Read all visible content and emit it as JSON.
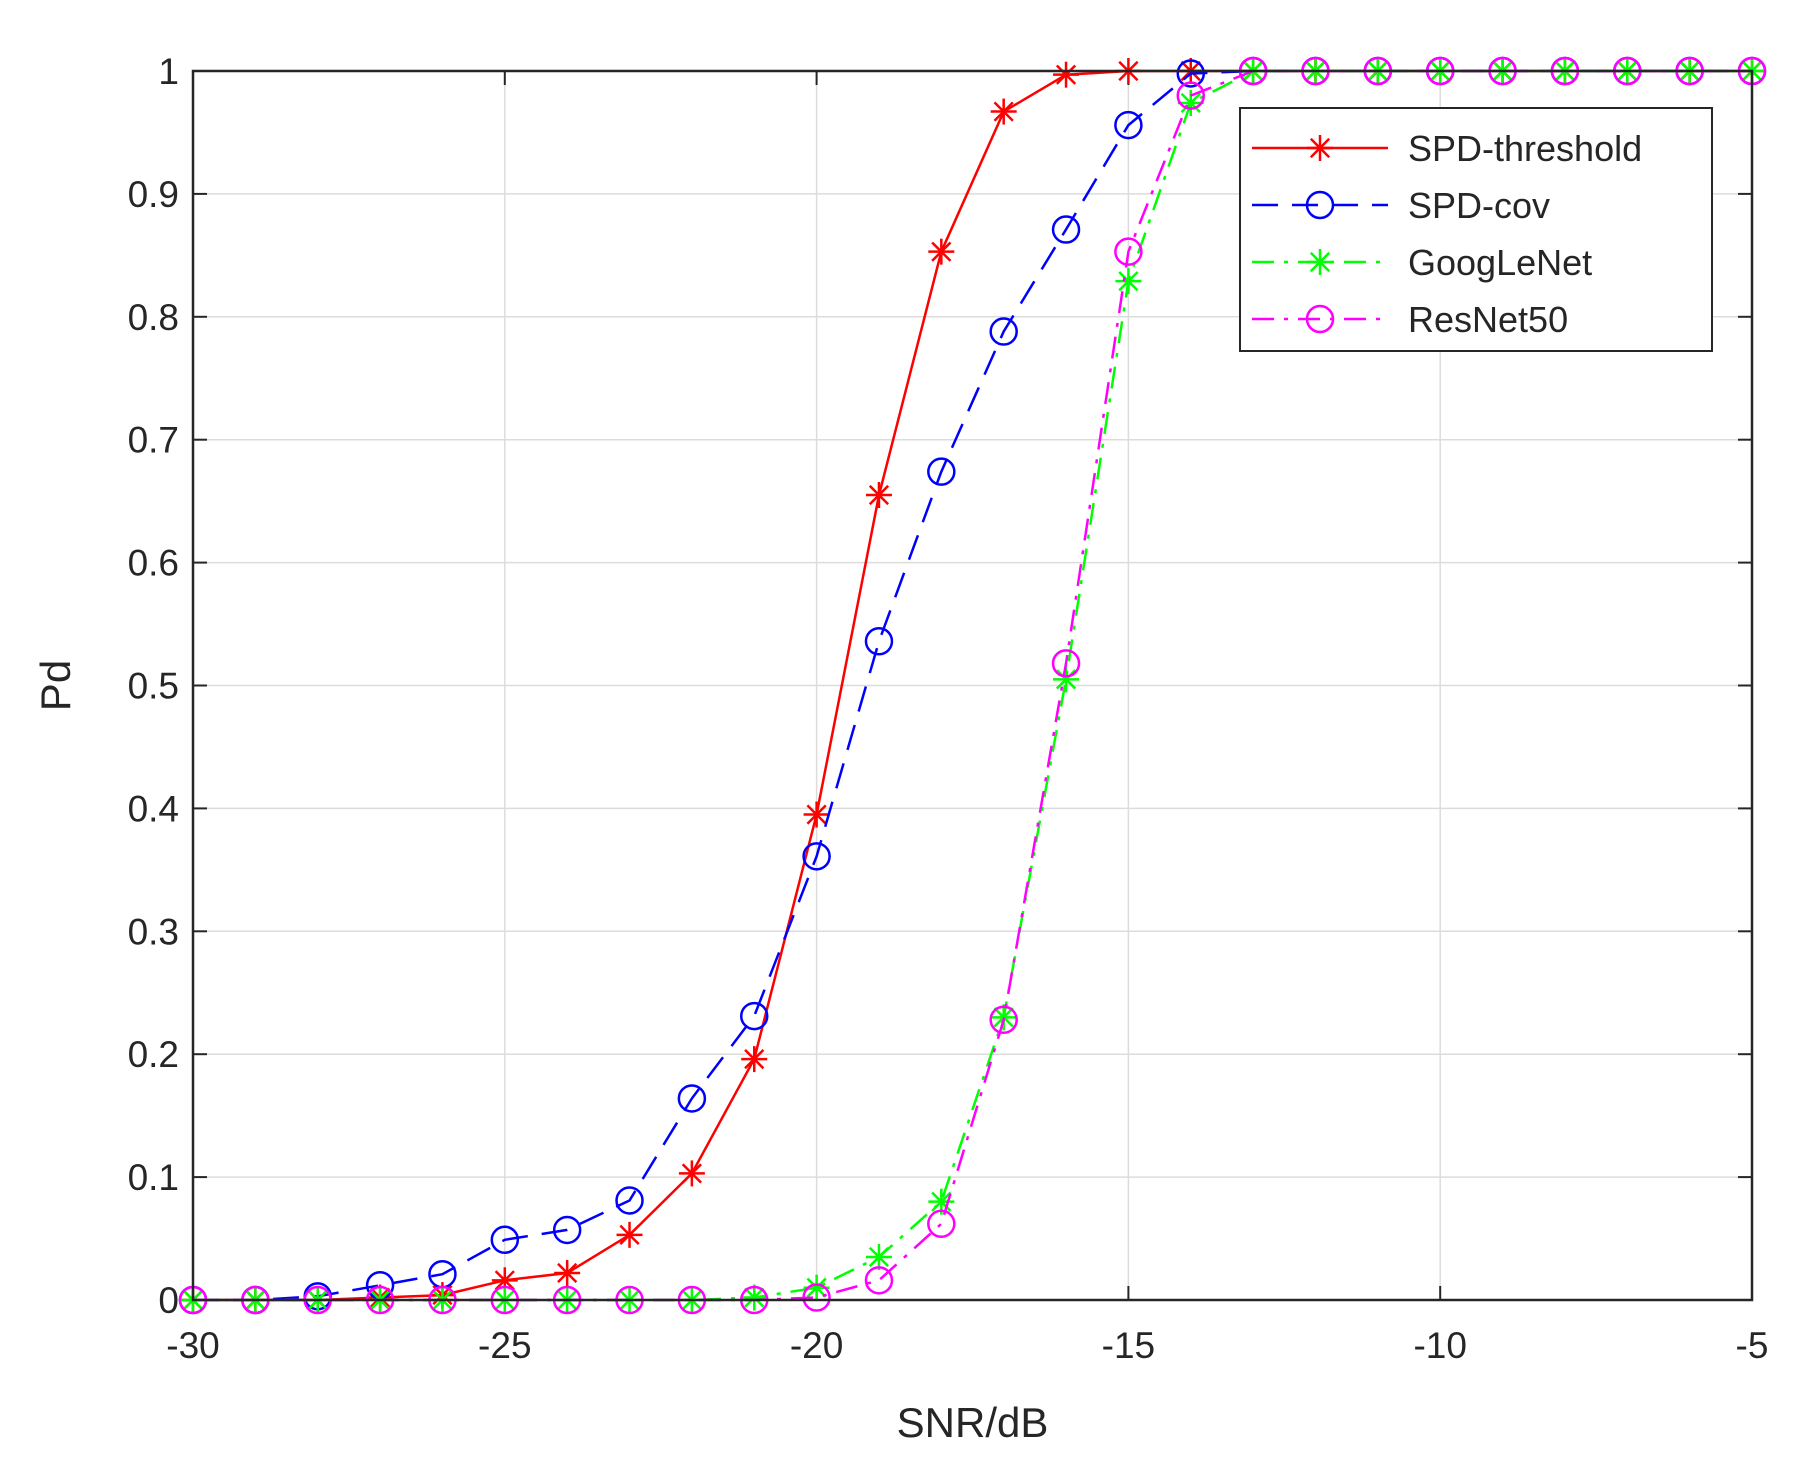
{
  "chart_data": {
    "type": "line",
    "title": "",
    "xlabel": "SNR/dB",
    "ylabel": "Pd",
    "xlim": [
      -30,
      -5
    ],
    "ylim": [
      0,
      1
    ],
    "x_ticks": [
      -30,
      -25,
      -20,
      -15,
      -10,
      -5
    ],
    "y_ticks": [
      0,
      0.1,
      0.2,
      0.3,
      0.4,
      0.5,
      0.6,
      0.7,
      0.8,
      0.9,
      1
    ],
    "grid": true,
    "legend_position": "top-right",
    "x": [
      -30,
      -29,
      -28,
      -27,
      -26,
      -25,
      -24,
      -23,
      -22,
      -21,
      -20,
      -19,
      -18,
      -17,
      -16,
      -15,
      -14,
      -13,
      -12,
      -11,
      -10,
      -9,
      -8,
      -7,
      -6,
      -5
    ],
    "series": [
      {
        "name": "SPD-threshold",
        "color": "#ff0000",
        "line_style": "solid",
        "marker": "asterisk",
        "values": [
          0,
          0,
          0,
          0.002,
          0.004,
          0.016,
          0.022,
          0.053,
          0.103,
          0.196,
          0.395,
          0.655,
          0.853,
          0.967,
          0.997,
          1,
          1,
          1,
          1,
          1,
          1,
          1,
          1,
          1,
          1,
          1
        ]
      },
      {
        "name": "SPD-cov",
        "color": "#0000ff",
        "line_style": "dashed",
        "marker": "circle",
        "values": [
          0,
          0,
          0.003,
          0.012,
          0.021,
          0.049,
          0.057,
          0.081,
          0.164,
          0.231,
          0.361,
          0.536,
          0.674,
          0.788,
          0.871,
          0.956,
          0.998,
          1,
          1,
          1,
          1,
          1,
          1,
          1,
          1,
          1
        ]
      },
      {
        "name": "GoogLeNet",
        "color": "#00ff00",
        "line_style": "dashdot",
        "marker": "asterisk",
        "values": [
          0,
          0,
          0,
          0,
          0,
          0,
          0,
          0,
          0,
          0.002,
          0.01,
          0.035,
          0.08,
          0.23,
          0.505,
          0.829,
          0.974,
          1,
          1,
          1,
          1,
          1,
          1,
          1,
          1,
          1
        ]
      },
      {
        "name": "ResNet50",
        "color": "#ff00ff",
        "line_style": "dashdot",
        "marker": "circle",
        "values": [
          0,
          0,
          0,
          0,
          0,
          0,
          0,
          0,
          0,
          0,
          0.002,
          0.016,
          0.062,
          0.228,
          0.518,
          0.853,
          0.98,
          1,
          1,
          1,
          1,
          1,
          1,
          1,
          1,
          1
        ]
      }
    ]
  }
}
